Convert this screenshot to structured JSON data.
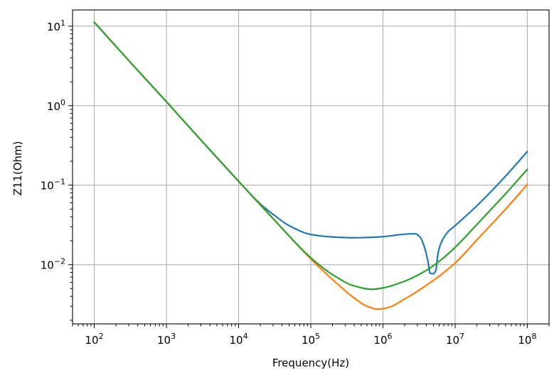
{
  "chart_data": {
    "type": "line",
    "xlabel": "Frequency(Hz)",
    "ylabel": "Z11(Ohm)",
    "xscale": "log",
    "yscale": "log",
    "xlim": [
      50,
      200000000
    ],
    "ylim": [
      0.0018,
      16
    ],
    "grid": true,
    "x_tick_labels": [
      {
        "base": "10",
        "exp": "2",
        "value": 100
      },
      {
        "base": "10",
        "exp": "3",
        "value": 1000
      },
      {
        "base": "10",
        "exp": "4",
        "value": 10000
      },
      {
        "base": "10",
        "exp": "5",
        "value": 100000
      },
      {
        "base": "10",
        "exp": "6",
        "value": 1000000
      },
      {
        "base": "10",
        "exp": "7",
        "value": 10000000
      },
      {
        "base": "10",
        "exp": "8",
        "value": 100000000
      }
    ],
    "y_tick_labels": [
      {
        "base": "10",
        "exp": "1",
        "value": 10
      },
      {
        "base": "10",
        "exp": "0",
        "value": 1
      },
      {
        "base": "10",
        "exp": "−1",
        "value": 0.1
      },
      {
        "base": "10",
        "exp": "−2",
        "value": 0.01
      }
    ],
    "series": [
      {
        "color": "#1f77b4",
        "points": [
          [
            100,
            11.2
          ],
          [
            300,
            3.7
          ],
          [
            1000,
            1.12
          ],
          [
            3000,
            0.37
          ],
          [
            10000,
            0.112
          ],
          [
            20000,
            0.058
          ],
          [
            30000,
            0.043
          ],
          [
            50000,
            0.031
          ],
          [
            100000,
            0.024
          ],
          [
            200000,
            0.0223
          ],
          [
            400000,
            0.0218
          ],
          [
            1000000,
            0.0225
          ],
          [
            2000000,
            0.0242
          ],
          [
            2800000,
            0.0245
          ],
          [
            3300000,
            0.022
          ],
          [
            3800000,
            0.016
          ],
          [
            4200000,
            0.011
          ],
          [
            4500000,
            0.0078
          ],
          [
            5000000,
            0.0077
          ],
          [
            5400000,
            0.0085
          ],
          [
            5800000,
            0.014
          ],
          [
            6500000,
            0.0195
          ],
          [
            8000000,
            0.026
          ],
          [
            10000000,
            0.031
          ],
          [
            20000000,
            0.055
          ],
          [
            50000000,
            0.13
          ],
          [
            100000000,
            0.265
          ]
        ]
      },
      {
        "color": "#ff7f0e",
        "points": [
          [
            100,
            11.2
          ],
          [
            300,
            3.7
          ],
          [
            1000,
            1.12
          ],
          [
            3000,
            0.37
          ],
          [
            10000,
            0.112
          ],
          [
            30000,
            0.038
          ],
          [
            100000,
            0.0118
          ],
          [
            200000,
            0.0065
          ],
          [
            400000,
            0.0038
          ],
          [
            600000,
            0.003
          ],
          [
            850000,
            0.00275
          ],
          [
            1200000,
            0.0029
          ],
          [
            2000000,
            0.0037
          ],
          [
            4000000,
            0.0055
          ],
          [
            10000000,
            0.0105
          ],
          [
            20000000,
            0.0205
          ],
          [
            50000000,
            0.05
          ],
          [
            100000000,
            0.102
          ]
        ]
      },
      {
        "color": "#2ca02c",
        "points": [
          [
            100,
            11.2
          ],
          [
            300,
            3.7
          ],
          [
            1000,
            1.12
          ],
          [
            3000,
            0.37
          ],
          [
            10000,
            0.112
          ],
          [
            30000,
            0.038
          ],
          [
            100000,
            0.0122
          ],
          [
            200000,
            0.0075
          ],
          [
            400000,
            0.0054
          ],
          [
            700000,
            0.0049
          ],
          [
            1000000,
            0.0051
          ],
          [
            2000000,
            0.0062
          ],
          [
            4000000,
            0.0085
          ],
          [
            6000000,
            0.011
          ],
          [
            10000000,
            0.0165
          ],
          [
            20000000,
            0.032
          ],
          [
            50000000,
            0.078
          ],
          [
            100000000,
            0.158
          ]
        ]
      }
    ]
  }
}
